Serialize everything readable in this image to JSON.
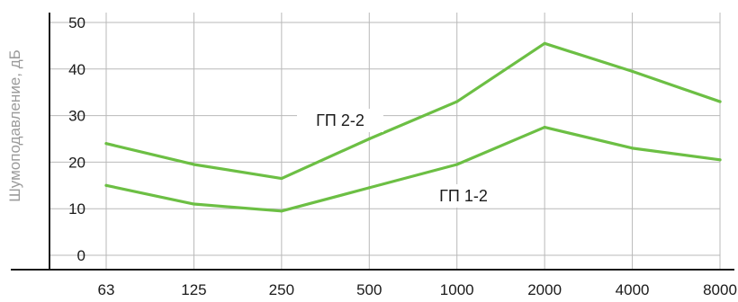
{
  "chart_data": {
    "type": "line",
    "title": "",
    "xlabel": "",
    "ylabel": "Шумоподавление, дБ",
    "categories": [
      "63",
      "125",
      "250",
      "500",
      "1000",
      "2000",
      "4000",
      "8000"
    ],
    "y_ticks": [
      "50",
      "40",
      "30",
      "20",
      "10",
      "0"
    ],
    "ylim": [
      0,
      50
    ],
    "grid": true,
    "series": [
      {
        "name": "ГП 2-2",
        "values": [
          24,
          19.5,
          16.5,
          25,
          33,
          45.5,
          39.5,
          33
        ]
      },
      {
        "name": "ГП 1-2",
        "values": [
          15,
          11,
          9.5,
          14.5,
          19.5,
          27.5,
          23,
          20.5
        ]
      }
    ],
    "line_color": "#6cbf44"
  }
}
